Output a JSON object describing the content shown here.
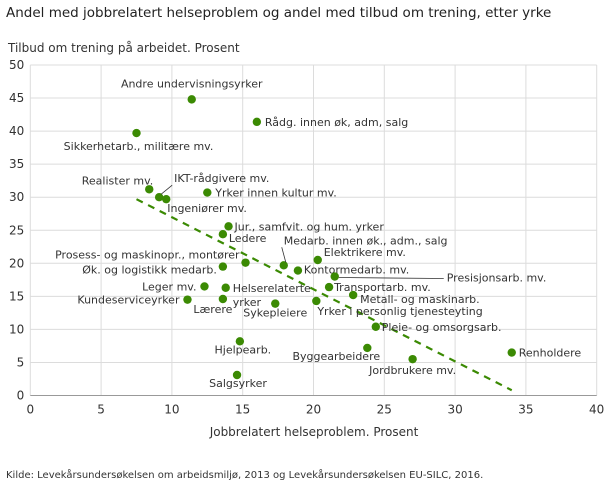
{
  "chart_data": {
    "type": "scatter",
    "title": "Andel med jobbrelatert helseproblem og andel med tilbud om trening, etter yrke",
    "ylabel": "Tilbud om trening på arbeidet. Prosent",
    "xlabel": "Jobbrelatert helseproblem. Prosent",
    "xlim": [
      0,
      40
    ],
    "ylim": [
      0,
      50
    ],
    "xticks": [
      0,
      5,
      10,
      15,
      20,
      25,
      30,
      35,
      40
    ],
    "yticks": [
      0,
      5,
      10,
      15,
      20,
      25,
      30,
      35,
      40,
      45,
      50
    ],
    "grid": true,
    "color": "#3b8a03",
    "points": [
      {
        "label": "Andre undervisningsyrker",
        "x": 11.4,
        "y": 44.8
      },
      {
        "label": "Rådg. innen øk, adm, salg",
        "x": 16.0,
        "y": 41.4
      },
      {
        "label": "Sikkerhetarb., militære mv.",
        "x": 7.5,
        "y": 39.7
      },
      {
        "label": "Realister mv.",
        "x": 8.4,
        "y": 31.2
      },
      {
        "label": "IKT-rådgivere mv.",
        "x": 9.1,
        "y": 30.0
      },
      {
        "label": "Ingeniører mv.",
        "x": 9.6,
        "y": 29.7
      },
      {
        "label": "Yrker innen kultur mv.",
        "x": 12.5,
        "y": 30.7
      },
      {
        "label": "Jur., samfvit. og hum. yrker",
        "x": 14.0,
        "y": 25.6
      },
      {
        "label": "Ledere",
        "x": 13.6,
        "y": 24.4
      },
      {
        "label": "Prosess- og maskinopr., montører",
        "x": 15.2,
        "y": 20.1
      },
      {
        "label": "Øk. og logistikk medarb.",
        "x": 13.6,
        "y": 19.5
      },
      {
        "label": "Leger mv.",
        "x": 12.3,
        "y": 16.5
      },
      {
        "label": "Helserelaterte yrker",
        "x": 13.8,
        "y": 16.3
      },
      {
        "label": "Kundeserviceyrker",
        "x": 11.1,
        "y": 14.5
      },
      {
        "label": "Lærere",
        "x": 13.6,
        "y": 14.6
      },
      {
        "label": "Sykepleiere",
        "x": 17.3,
        "y": 13.9
      },
      {
        "label": "Hjelpearb.",
        "x": 14.8,
        "y": 8.2
      },
      {
        "label": "Salgsyrker",
        "x": 14.6,
        "y": 3.1
      },
      {
        "label": "Medarb. innen øk., adm., salg",
        "x": 17.9,
        "y": 19.7
      },
      {
        "label": "Kontormedarb. mv.",
        "x": 18.9,
        "y": 18.9
      },
      {
        "label": "Elektrikere mv.",
        "x": 20.3,
        "y": 20.5
      },
      {
        "label": "Presisjonsarb. mv.",
        "x": 21.5,
        "y": 18.0
      },
      {
        "label": "Transportarb. mv.",
        "x": 21.1,
        "y": 16.4
      },
      {
        "label": "Metall- og maskinarb.",
        "x": 22.8,
        "y": 15.2
      },
      {
        "label": "Yrker i personlig tjenesteyting",
        "x": 20.2,
        "y": 14.3
      },
      {
        "label": "Pleie- og omsorgsarb.",
        "x": 24.4,
        "y": 10.4
      },
      {
        "label": "Byggearbeidere",
        "x": 23.8,
        "y": 7.2
      },
      {
        "label": "Jordbrukere mv.",
        "x": 27.0,
        "y": 5.5
      },
      {
        "label": "Renholdere",
        "x": 34.0,
        "y": 6.5
      }
    ],
    "trendline": {
      "style": "dashed",
      "from": {
        "x": 7.5,
        "y": 29.7
      },
      "to": {
        "x": 34.0,
        "y": 0.8
      }
    }
  },
  "source": "Kilde: Levekårsundersøkelsen om arbeidsmiljø, 2013 og Levekårsundersøkelsen EU-SILC, 2016."
}
